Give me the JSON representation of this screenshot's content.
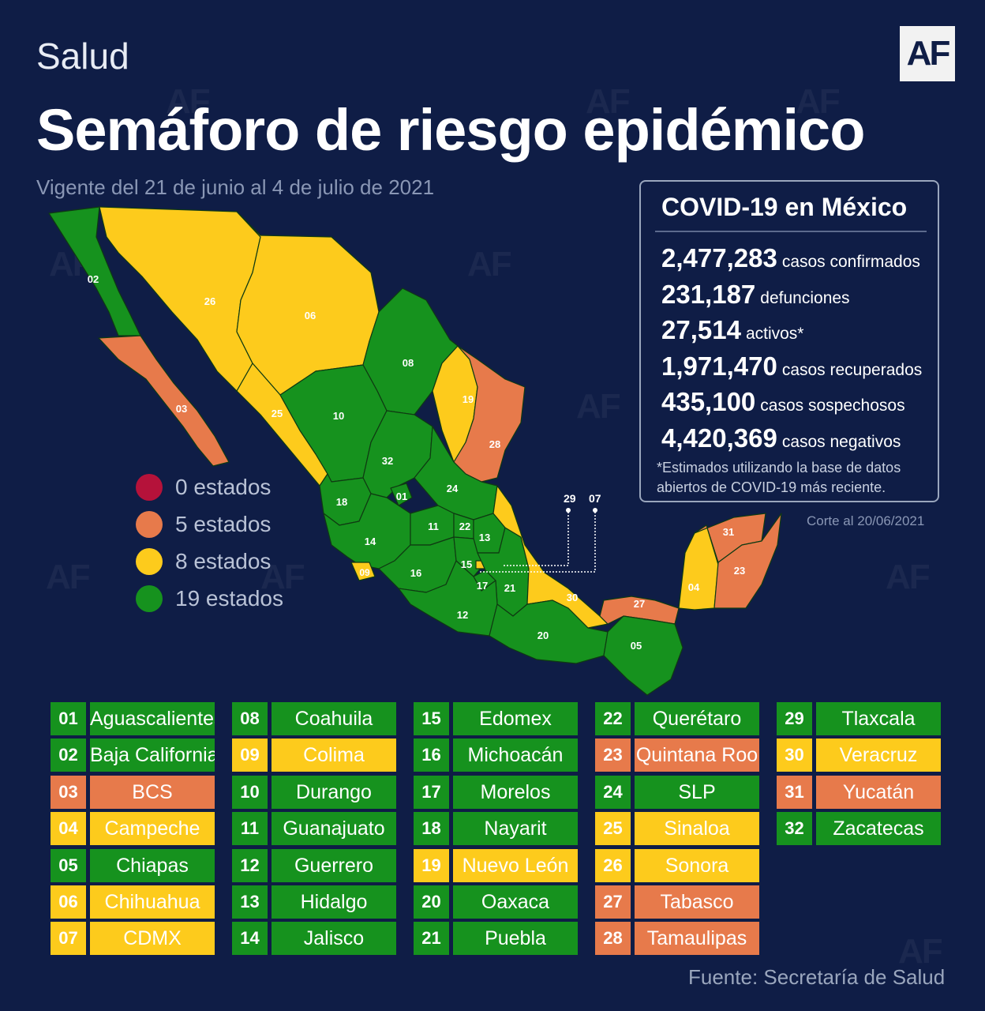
{
  "header": {
    "section": "Salud",
    "logo": "AF",
    "title": "Semáforo de riesgo epidémico",
    "subtitle": "Vigente del 21 de junio al 4 de julio de 2021"
  },
  "watermark": "AF",
  "colors": {
    "background": "#0f1d46",
    "red": "#b5123a",
    "orange": "#e77a4b",
    "yellow": "#fdcb1c",
    "green": "#16921e"
  },
  "stats": {
    "title": "COVID-19 en México",
    "items": [
      {
        "value": "2,477,283",
        "label": "casos confirmados"
      },
      {
        "value": "231,187",
        "label": "defunciones"
      },
      {
        "value": "27,514",
        "label": "activos*"
      },
      {
        "value": "1,971,470",
        "label": "casos recuperados"
      },
      {
        "value": "435,100",
        "label": "casos sospechosos"
      },
      {
        "value": "4,420,369",
        "label": "casos negativos"
      }
    ],
    "note": "*Estimados utilizando la base de datos abiertos de COVID-19 más reciente.",
    "cutoff": "Corte al 20/06/2021"
  },
  "legend": [
    {
      "label": "0 estados",
      "color": "red"
    },
    {
      "label": "5 estados",
      "color": "orange"
    },
    {
      "label": "8 estados",
      "color": "yellow"
    },
    {
      "label": "19 estados",
      "color": "green"
    }
  ],
  "map": {
    "callout_labels": [
      "29",
      "07"
    ]
  },
  "states": [
    {
      "code": "01",
      "name": "Aguascalientes",
      "color": "green"
    },
    {
      "code": "02",
      "name": "Baja California",
      "color": "green"
    },
    {
      "code": "03",
      "name": "BCS",
      "color": "orange"
    },
    {
      "code": "04",
      "name": "Campeche",
      "color": "yellow"
    },
    {
      "code": "05",
      "name": "Chiapas",
      "color": "green"
    },
    {
      "code": "06",
      "name": "Chihuahua",
      "color": "yellow"
    },
    {
      "code": "07",
      "name": "CDMX",
      "color": "yellow"
    },
    {
      "code": "08",
      "name": "Coahuila",
      "color": "green"
    },
    {
      "code": "09",
      "name": "Colima",
      "color": "yellow"
    },
    {
      "code": "10",
      "name": "Durango",
      "color": "green"
    },
    {
      "code": "11",
      "name": "Guanajuato",
      "color": "green"
    },
    {
      "code": "12",
      "name": "Guerrero",
      "color": "green"
    },
    {
      "code": "13",
      "name": "Hidalgo",
      "color": "green"
    },
    {
      "code": "14",
      "name": "Jalisco",
      "color": "green"
    },
    {
      "code": "15",
      "name": "Edomex",
      "color": "green"
    },
    {
      "code": "16",
      "name": "Michoacán",
      "color": "green"
    },
    {
      "code": "17",
      "name": "Morelos",
      "color": "green"
    },
    {
      "code": "18",
      "name": "Nayarit",
      "color": "green"
    },
    {
      "code": "19",
      "name": "Nuevo León",
      "color": "yellow"
    },
    {
      "code": "20",
      "name": "Oaxaca",
      "color": "green"
    },
    {
      "code": "21",
      "name": "Puebla",
      "color": "green"
    },
    {
      "code": "22",
      "name": "Querétaro",
      "color": "green"
    },
    {
      "code": "23",
      "name": "Quintana Roo",
      "color": "orange"
    },
    {
      "code": "24",
      "name": "SLP",
      "color": "green"
    },
    {
      "code": "25",
      "name": "Sinaloa",
      "color": "yellow"
    },
    {
      "code": "26",
      "name": "Sonora",
      "color": "yellow"
    },
    {
      "code": "27",
      "name": "Tabasco",
      "color": "orange"
    },
    {
      "code": "28",
      "name": "Tamaulipas",
      "color": "orange"
    },
    {
      "code": "29",
      "name": "Tlaxcala",
      "color": "green"
    },
    {
      "code": "30",
      "name": "Veracruz",
      "color": "yellow"
    },
    {
      "code": "31",
      "name": "Yucatán",
      "color": "orange"
    },
    {
      "code": "32",
      "name": "Zacatecas",
      "color": "green"
    }
  ],
  "source": "Fuente: Secretaría de Salud"
}
